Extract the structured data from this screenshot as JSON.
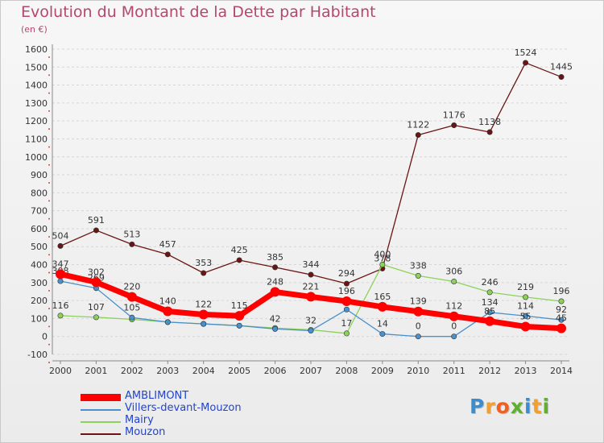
{
  "title": "Evolution du Montant de la Dette par Habitant",
  "subtitle": "(en €)",
  "logo": {
    "letters": [
      "P",
      "r",
      "o",
      "x",
      "i",
      "t",
      "i"
    ],
    "colors": [
      "#3a8ed0",
      "#f0a030",
      "#f06020",
      "#60b030",
      "#3a8ed0",
      "#f0a030",
      "#60b030"
    ]
  },
  "chart_data": {
    "type": "line",
    "x": [
      "2000",
      "2001",
      "2002",
      "2003",
      "2004",
      "2005",
      "2006",
      "2007",
      "2008",
      "2009",
      "2010",
      "2011",
      "2012",
      "2013",
      "2014"
    ],
    "ylim": [
      -100,
      1600
    ],
    "yticks": [
      "-100",
      "0",
      "100",
      "200",
      "300",
      "400",
      "500",
      "600",
      "700",
      "800",
      "900",
      "1000",
      "1100",
      "1200",
      "1300",
      "1400",
      "1500",
      "1600"
    ],
    "grid": "horizontal",
    "legend": "bottom-left",
    "series": [
      {
        "name": "Mouzon",
        "color": "#6b1414",
        "values": [
          504,
          591,
          513,
          457,
          353,
          425,
          385,
          344,
          294,
          378,
          1122,
          1176,
          1138,
          1524,
          1445
        ],
        "labels": [
          "504",
          "591",
          "513",
          "457",
          "353",
          "425",
          "385",
          "344",
          "294",
          "378",
          "1122",
          "1176",
          "1138",
          "1524",
          "1445"
        ]
      },
      {
        "name": "Mairy",
        "color": "#8cd25a",
        "values": [
          116,
          107,
          95,
          80,
          70,
          60,
          47,
          37,
          17,
          400,
          338,
          306,
          246,
          219,
          196
        ],
        "labels": [
          "116",
          "107",
          "",
          "",
          "",
          "",
          "",
          "",
          "17",
          "400",
          "338",
          "306",
          "246",
          "219",
          "196"
        ]
      },
      {
        "name": "Villers-devant-Mouzon",
        "color": "#4a90cc",
        "values": [
          308,
          269,
          105,
          80,
          70,
          60,
          42,
          32,
          150,
          14,
          0,
          0,
          134,
          114,
          92
        ],
        "labels": [
          "308",
          "269",
          "105",
          "",
          "",
          "",
          "42",
          "32",
          "",
          "14",
          "0",
          "0",
          "134",
          "114",
          "92"
        ]
      },
      {
        "name": "AMBLIMONT",
        "color": "#ff0000",
        "values": [
          347,
          302,
          220,
          140,
          122,
          115,
          248,
          221,
          196,
          165,
          139,
          112,
          85,
          55,
          45
        ],
        "labels": [
          "347",
          "302",
          "220",
          "140",
          "122",
          "115",
          "248",
          "221",
          "196",
          "165",
          "139",
          "112",
          "85",
          "55",
          "45"
        ]
      }
    ],
    "legend_order": [
      "AMBLIMONT",
      "Villers-devant-Mouzon",
      "Mairy",
      "Mouzon"
    ]
  }
}
